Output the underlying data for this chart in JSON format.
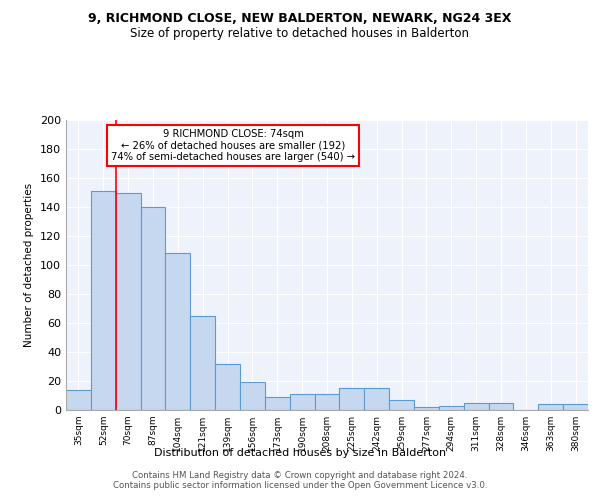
{
  "title": "9, RICHMOND CLOSE, NEW BALDERTON, NEWARK, NG24 3EX",
  "subtitle": "Size of property relative to detached houses in Balderton",
  "xlabel": "Distribution of detached houses by size in Balderton",
  "ylabel": "Number of detached properties",
  "categories": [
    "35sqm",
    "52sqm",
    "70sqm",
    "87sqm",
    "104sqm",
    "121sqm",
    "139sqm",
    "156sqm",
    "173sqm",
    "190sqm",
    "208sqm",
    "225sqm",
    "242sqm",
    "259sqm",
    "277sqm",
    "294sqm",
    "311sqm",
    "328sqm",
    "346sqm",
    "363sqm",
    "380sqm"
  ],
  "values": [
    14,
    151,
    150,
    140,
    108,
    65,
    32,
    19,
    9,
    11,
    11,
    15,
    15,
    7,
    2,
    3,
    5,
    5,
    0,
    4,
    4
  ],
  "bar_color": "#c5d8f0",
  "bar_edge_color": "#5b9bd5",
  "annotation_line1": "9 RICHMOND CLOSE: 74sqm",
  "annotation_line2": "← 26% of detached houses are smaller (192)",
  "annotation_line3": "74% of semi-detached houses are larger (540) →",
  "red_line_x": 1.5,
  "annotation_box_color": "white",
  "annotation_box_edge_color": "red",
  "footer": "Contains HM Land Registry data © Crown copyright and database right 2024.\nContains public sector information licensed under the Open Government Licence v3.0.",
  "background_color": "#eef3fb",
  "ylim": [
    0,
    200
  ],
  "yticks": [
    0,
    20,
    40,
    60,
    80,
    100,
    120,
    140,
    160,
    180,
    200
  ],
  "title_fontsize": 9,
  "subtitle_fontsize": 8.5
}
